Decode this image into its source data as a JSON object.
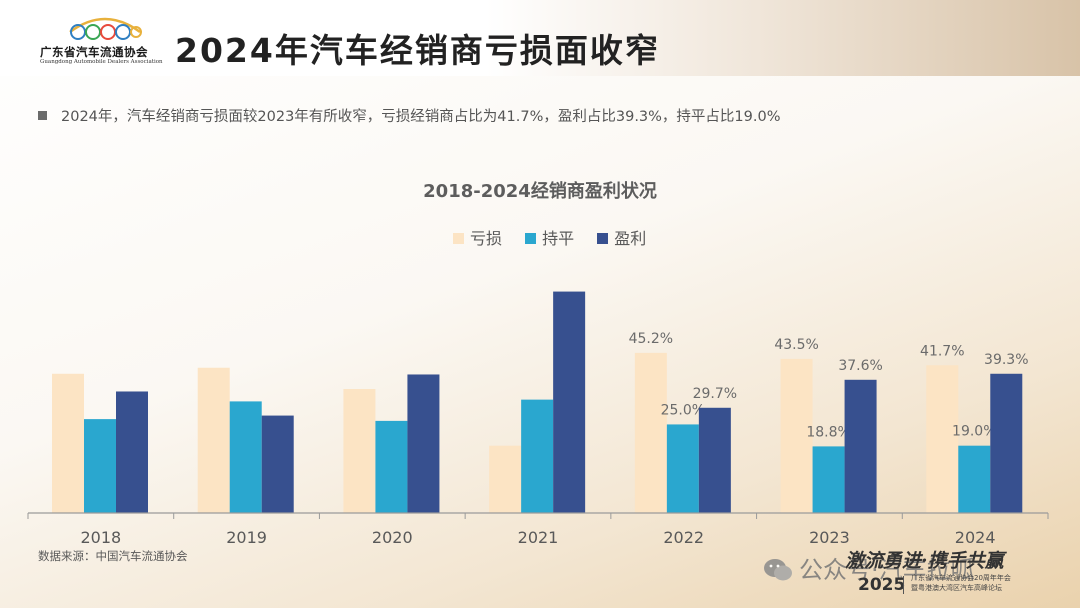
{
  "header": {
    "logo_name": "广东省汽车流通协会",
    "logo_en": "Guangdong Automobile Dealers Association",
    "title": "2024年汽车经销商亏损面收窄"
  },
  "summary": "2024年，汽车经销商亏损面较2023年有所收窄，亏损经销商占比为41.7%，盈利占比39.3%，持平占比19.0%",
  "source": "数据来源：中国汽车流通协会",
  "watermark": {
    "account": "公众号·汽车拉呱",
    "slogan": "激流勇进·携手共赢"
  },
  "footer": {
    "year": "2025",
    "org_line1": "广东省汽车流通协会20周年年会",
    "org_line2": "暨粤港澳大湾区汽车高峰论坛"
  },
  "colors": {
    "loss": "#fce4c4",
    "flat": "#2aa7cf",
    "profit": "#37508f"
  },
  "chart_data": {
    "type": "bar",
    "title": "2018-2024经销商盈利状况",
    "categories": [
      "2018",
      "2019",
      "2020",
      "2021",
      "2022",
      "2023",
      "2024"
    ],
    "series": [
      {
        "name": "亏损",
        "values": [
          39.3,
          41.0,
          35.0,
          19.0,
          45.2,
          43.5,
          41.7
        ],
        "labels": [
          "",
          "",
          "",
          "",
          "45.2%",
          "43.5%",
          "41.7%"
        ]
      },
      {
        "name": "持平",
        "values": [
          26.5,
          31.5,
          26.0,
          32.0,
          25.0,
          18.8,
          19.0
        ],
        "labels": [
          "",
          "",
          "",
          "",
          "25.0%",
          "18.8%",
          "19.0%"
        ]
      },
      {
        "name": "盈利",
        "values": [
          34.3,
          27.5,
          39.1,
          62.5,
          29.7,
          37.6,
          39.3
        ],
        "labels": [
          "",
          "",
          "",
          "",
          "29.7%",
          "37.6%",
          "39.3%"
        ]
      }
    ],
    "ylim": [
      0,
      70
    ],
    "legend_position": "top-center",
    "grid": false
  }
}
